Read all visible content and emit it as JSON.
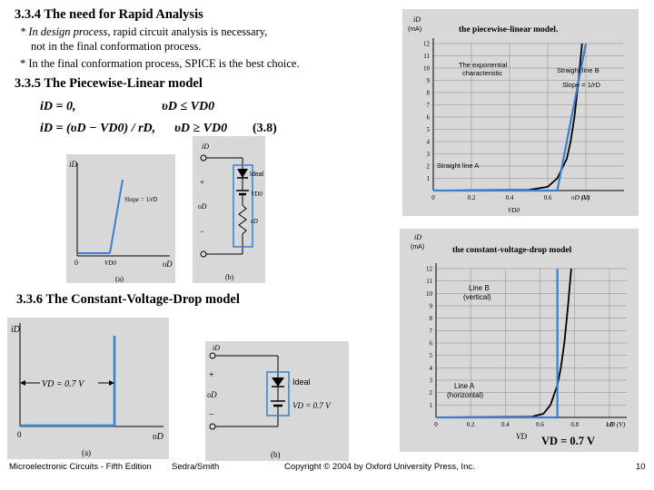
{
  "section_rapid": {
    "heading": "3.3.4 The need for Rapid Analysis",
    "bullet1_em": "* In design process,",
    "bullet1_rest": " rapid circuit analysis is necessary,",
    "bullet1_cont": "not in the final conformation process.",
    "bullet2": "* In the final conformation process, SPICE is the best choice."
  },
  "section_pwl": {
    "heading": "3.3.5 The Piecewise-Linear model",
    "eq1_lhs": "iD = 0,",
    "eq1_cond": "υD ≤ VD0",
    "eq2_lhs": "iD = (υD − VD0) / rD,",
    "eq2_cond": "υD ≥ VD0",
    "eq_number": "(3.8)"
  },
  "fig_pwl_a": {
    "ylabel": "iD",
    "xlabel": "υD",
    "origin": "0",
    "xmark": "VD0",
    "slope": "Slope = 1/rD",
    "caption": "(a)"
  },
  "fig_pwl_b": {
    "current": "iD",
    "voltage": "υD",
    "plus": "+",
    "minus": "−",
    "ideal": "Ideal",
    "source": "VD0",
    "resistor": "rD",
    "caption": "(b)"
  },
  "fig_pwl_graph": {
    "title": "the piecewise-linear model.",
    "ylabel": "iD",
    "yunit": "(mA)",
    "xlabel": "υD (V)",
    "x_ticks": [
      "0",
      "0.2",
      "0.4",
      "0.6",
      "0.8"
    ],
    "y_ticks": [
      "1",
      "2",
      "3",
      "4",
      "5",
      "6",
      "7",
      "8",
      "9",
      "10",
      "11",
      "12"
    ],
    "exp_label_1": "The exponential",
    "exp_label_2": "characteristic",
    "lineb": "Straight line B",
    "slope": "Slope = 1/rD",
    "linea": "Straight line A",
    "vd0": "VD0"
  },
  "fig_cvd_graph": {
    "title": "the constant-voltage-drop model",
    "ylabel": "iD",
    "yunit": "(mA)",
    "xlabel": "υD (V)",
    "x_ticks": [
      "0",
      "0.2",
      "0.4",
      "0.6",
      "0.8",
      "1.0"
    ],
    "y_ticks": [
      "1",
      "2",
      "3",
      "4",
      "5",
      "6",
      "7",
      "8",
      "9",
      "10",
      "11",
      "12"
    ],
    "lineb_1": "Line B",
    "lineb_2": "(vertical)",
    "linea_1": "Line A",
    "linea_2": "(horizontal)",
    "vd": "VD",
    "vd_value": "VD = 0.7 V"
  },
  "section_cvd": {
    "heading": "3.3.6 The Constant-Voltage-Drop model"
  },
  "fig_cvd_a": {
    "ylabel": "iD",
    "xlabel": "υD",
    "origin": "0",
    "vd_label": "VD = 0.7 V",
    "caption": "(a)"
  },
  "fig_cvd_b": {
    "current": "iD",
    "voltage": "υD",
    "plus": "+",
    "minus": "−",
    "ideal": "Ideal",
    "vd_label": "VD = 0.7 V",
    "caption": "(b)"
  },
  "footer": {
    "book": "Microelectronic Circuits - Fifth Edition",
    "authors": "Sedra/Smith",
    "copyright": "Copyright © 2004 by Oxford University Press, Inc.",
    "page": "10"
  },
  "chart_data": [
    {
      "type": "line",
      "title": "the piecewise-linear model.",
      "xlabel": "υD (V)",
      "ylabel": "iD (mA)",
      "xlim": [
        0,
        1.0
      ],
      "ylim": [
        0,
        12
      ],
      "x_ticks": [
        0,
        0.2,
        0.4,
        0.6,
        0.8
      ],
      "y_ticks": [
        1,
        2,
        3,
        4,
        5,
        6,
        7,
        8,
        9,
        10,
        11,
        12
      ],
      "series": [
        {
          "name": "The exponential characteristic",
          "x": [
            0,
            0.5,
            0.6,
            0.65,
            0.7,
            0.72,
            0.74,
            0.76,
            0.78
          ],
          "y": [
            0,
            0.05,
            0.3,
            1.0,
            2.6,
            4.0,
            6.0,
            8.8,
            12
          ]
        },
        {
          "name": "Straight line B",
          "x": [
            0.65,
            0.8
          ],
          "y": [
            0,
            12
          ]
        },
        {
          "name": "Straight line A",
          "x": [
            0,
            0.65
          ],
          "y": [
            0,
            0
          ]
        }
      ]
    },
    {
      "type": "line",
      "title": "the constant-voltage-drop model",
      "xlabel": "υD (V)",
      "ylabel": "iD (mA)",
      "xlim": [
        0,
        1.1
      ],
      "ylim": [
        0,
        12
      ],
      "x_ticks": [
        0,
        0.2,
        0.4,
        0.6,
        0.8,
        1.0
      ],
      "y_ticks": [
        1,
        2,
        3,
        4,
        5,
        6,
        7,
        8,
        9,
        10,
        11,
        12
      ],
      "series": [
        {
          "name": "exponential",
          "x": [
            0,
            0.55,
            0.62,
            0.66,
            0.7,
            0.72,
            0.74,
            0.76,
            0.78
          ],
          "y": [
            0,
            0.05,
            0.3,
            1.0,
            2.6,
            4.0,
            6.0,
            8.8,
            12
          ]
        },
        {
          "name": "Line B (vertical)",
          "x": [
            0.7,
            0.7
          ],
          "y": [
            0,
            12
          ]
        },
        {
          "name": "Line A (horizontal)",
          "x": [
            0,
            0.7
          ],
          "y": [
            0,
            0
          ]
        }
      ]
    }
  ]
}
